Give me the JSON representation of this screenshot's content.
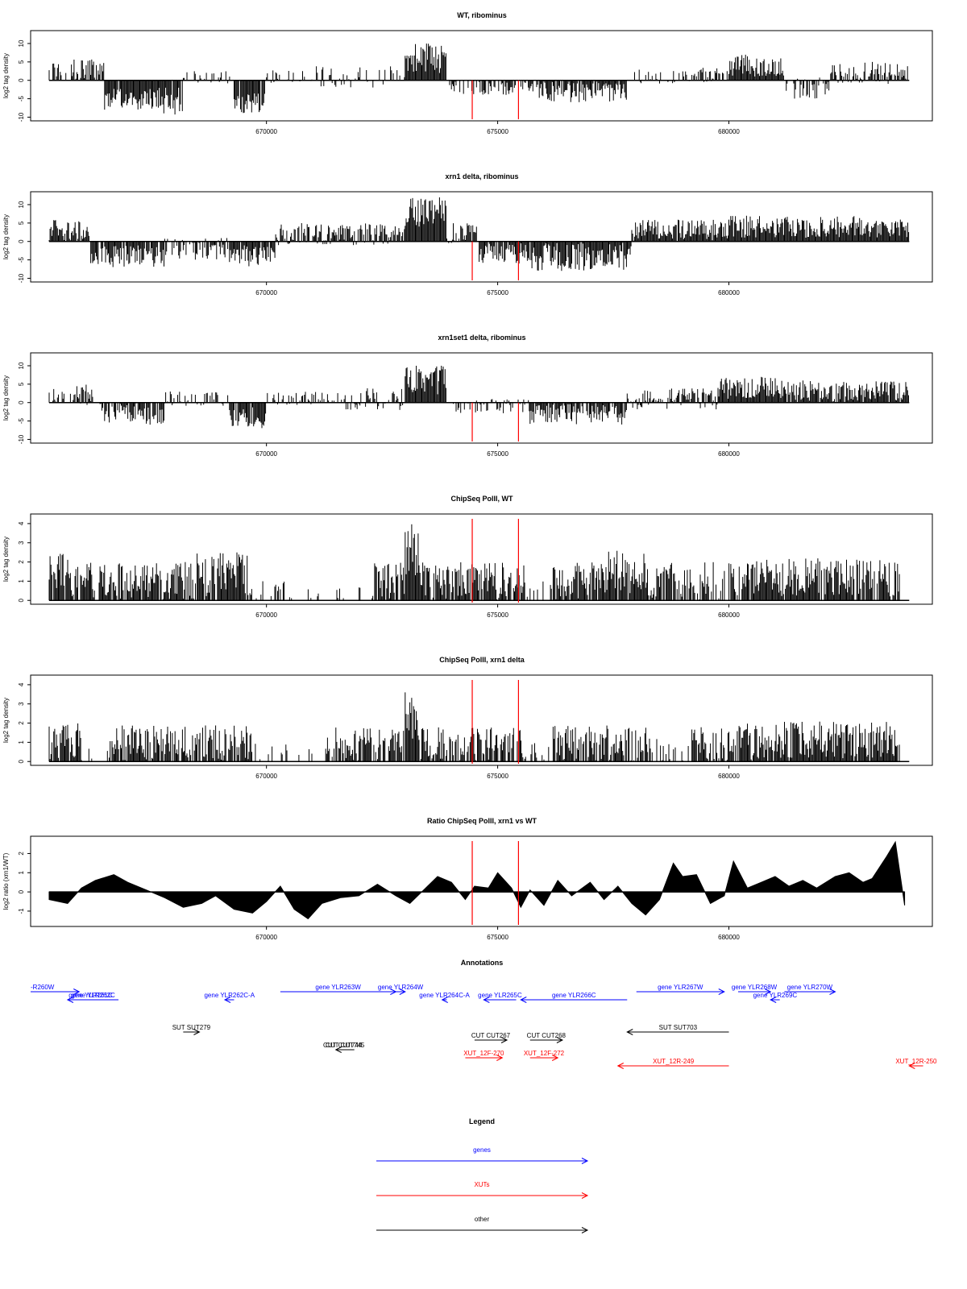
{
  "colors": {
    "signal": "#000000",
    "marker": "#ff0000",
    "gene": "#0000ff",
    "xut": "#ff0000",
    "other": "#000000",
    "frame": "#000000"
  },
  "chart_data": [
    {
      "type": "bar",
      "title": "WT, ribominus",
      "ylabel": "log2 tag density",
      "xlim": [
        664900,
        684400
      ],
      "ylim": [
        -11,
        13.5
      ],
      "yticks": [
        "10",
        "5",
        "0",
        "-5",
        "-10"
      ],
      "yticks_values": [
        10,
        5,
        0,
        -5,
        -10
      ],
      "xticks": [
        "670000",
        "675000",
        "680000"
      ],
      "xticks_values": [
        670000,
        675000,
        680000
      ],
      "markers_x": [
        674450,
        675450
      ],
      "series": [
        {
          "segments": [
            [
              665300,
              665800,
              3,
              2,
              0.4
            ],
            [
              665800,
              666500,
              3,
              3,
              0.9
            ],
            [
              666500,
              667700,
              -5,
              3,
              0.95
            ],
            [
              667700,
              668200,
              -6,
              4,
              0.9
            ],
            [
              668200,
              669300,
              1,
              2,
              0.5
            ],
            [
              669300,
              670000,
              -6,
              3,
              0.95
            ],
            [
              670000,
              671000,
              1,
              2,
              0.3
            ],
            [
              671000,
              673000,
              1,
              3,
              0.35
            ],
            [
              673000,
              673900,
              6,
              4,
              1.0
            ],
            [
              673900,
              674600,
              -2,
              2,
              0.4
            ],
            [
              674600,
              675900,
              -2,
              2,
              0.6
            ],
            [
              675900,
              677800,
              -3,
              3,
              0.95
            ],
            [
              677800,
              679200,
              1,
              2,
              0.3
            ],
            [
              679200,
              680000,
              1.5,
              2,
              0.7
            ],
            [
              680000,
              681200,
              4,
              3,
              1.0
            ],
            [
              681200,
              682200,
              -2,
              3,
              0.6
            ],
            [
              682200,
              683900,
              2,
              3,
              0.9
            ]
          ]
        }
      ]
    },
    {
      "type": "bar",
      "title": "xrn1 delta, ribominus",
      "ylabel": "log2 tag density",
      "xlim": [
        664900,
        684400
      ],
      "ylim": [
        -11,
        13.5
      ],
      "yticks": [
        "10",
        "5",
        "0",
        "-5",
        "-10"
      ],
      "yticks_values": [
        10,
        5,
        0,
        -5,
        -10
      ],
      "xticks": [
        "670000",
        "675000",
        "680000"
      ],
      "xticks_values": [
        670000,
        675000,
        680000
      ],
      "markers_x": [
        674450,
        675450
      ],
      "series": [
        {
          "segments": [
            [
              665300,
              666200,
              3,
              3,
              0.95
            ],
            [
              666200,
              667800,
              -4,
              3,
              0.95
            ],
            [
              667800,
              669200,
              -2,
              3,
              0.8
            ],
            [
              669200,
              670200,
              -4,
              3,
              0.95
            ],
            [
              670200,
              671300,
              2,
              3,
              0.8
            ],
            [
              671300,
              673000,
              2,
              3,
              0.8
            ],
            [
              673000,
              673900,
              8,
              4,
              1.0
            ],
            [
              673900,
              674600,
              2,
              3,
              0.9
            ],
            [
              674600,
              675700,
              -3,
              3,
              0.9
            ],
            [
              675700,
              677900,
              -4,
              4,
              1.0
            ],
            [
              677900,
              680000,
              3,
              3,
              1.0
            ],
            [
              680000,
              683900,
              4,
              3,
              1.0
            ]
          ]
        }
      ]
    },
    {
      "type": "bar",
      "title": "xrn1set1 delta, ribominus",
      "ylabel": "log2 tag density",
      "xlim": [
        664900,
        684400
      ],
      "ylim": [
        -11,
        13.5
      ],
      "yticks": [
        "10",
        "5",
        "0",
        "-5",
        "-10"
      ],
      "yticks_values": [
        10,
        5,
        0,
        -5,
        -10
      ],
      "xticks": [
        "670000",
        "675000",
        "680000"
      ],
      "xticks_values": [
        670000,
        675000,
        680000
      ],
      "markers_x": [
        674450,
        675450
      ],
      "series": [
        {
          "segments": [
            [
              665300,
              665800,
              2,
              2,
              0.7
            ],
            [
              665800,
              666400,
              2,
              3,
              0.8
            ],
            [
              666400,
              667800,
              -3,
              3,
              0.9
            ],
            [
              667800,
              669200,
              1,
              2,
              0.5
            ],
            [
              669200,
              670000,
              -4,
              3,
              0.9
            ],
            [
              670000,
              671300,
              1,
              2,
              0.6
            ],
            [
              671300,
              673000,
              1,
              3,
              0.6
            ],
            [
              673000,
              673900,
              6,
              4,
              1.0
            ],
            [
              673900,
              675700,
              -1,
              2,
              0.5
            ],
            [
              675700,
              677800,
              -3,
              3,
              0.95
            ],
            [
              677800,
              679800,
              1,
              3,
              0.9
            ],
            [
              679800,
              681200,
              4,
              3,
              1.0
            ],
            [
              681200,
              683900,
              3,
              3,
              1.0
            ]
          ]
        }
      ]
    },
    {
      "type": "bar",
      "title": "ChipSeq PolII, WT",
      "ylabel": "log2 tag density",
      "xlim": [
        664900,
        684400
      ],
      "ylim": [
        -0.2,
        4.5
      ],
      "yticks": [
        "4",
        "3",
        "2",
        "1",
        "0"
      ],
      "yticks_values": [
        4,
        3,
        2,
        1,
        0
      ],
      "xticks": [
        "670000",
        "675000",
        "680000"
      ],
      "xticks_values": [
        670000,
        675000,
        680000
      ],
      "markers_x": [
        674450,
        675450
      ],
      "series": [
        {
          "segments": [
            [
              665300,
              665800,
              1.5,
              1,
              0.9
            ],
            [
              665800,
              666400,
              1,
              1,
              0.6
            ],
            [
              666400,
              668500,
              1,
              1,
              0.9
            ],
            [
              668500,
              669700,
              1.3,
              1.2,
              0.95
            ],
            [
              669700,
              670500,
              0.6,
              0.5,
              0.25
            ],
            [
              670500,
              672300,
              0.3,
              0.4,
              0.1
            ],
            [
              672300,
              673000,
              1,
              1,
              0.9
            ],
            [
              673000,
              673300,
              2.5,
              1.5,
              1.0
            ],
            [
              673300,
              675600,
              1,
              1,
              0.9
            ],
            [
              675600,
              676200,
              0.6,
              0.6,
              0.3
            ],
            [
              676200,
              677400,
              1,
              1,
              0.9
            ],
            [
              677400,
              678200,
              1.4,
              1.2,
              0.95
            ],
            [
              678200,
              679100,
              1,
              1,
              0.8
            ],
            [
              679100,
              680300,
              1,
              1,
              0.6
            ],
            [
              680300,
              683700,
              1.2,
              1,
              0.95
            ]
          ]
        }
      ]
    },
    {
      "type": "bar",
      "title": "ChipSeq PolII, xrn1 delta",
      "ylabel": "log2 tag density",
      "xlim": [
        664900,
        684400
      ],
      "ylim": [
        -0.2,
        4.5
      ],
      "yticks": [
        "4",
        "3",
        "2",
        "1",
        "0"
      ],
      "yticks_values": [
        4,
        3,
        2,
        1,
        0
      ],
      "xticks": [
        "670000",
        "675000",
        "680000"
      ],
      "xticks_values": [
        670000,
        675000,
        680000
      ],
      "markers_x": [
        674450,
        675450
      ],
      "series": [
        {
          "segments": [
            [
              665300,
              666000,
              1,
              1,
              0.9
            ],
            [
              666000,
              666600,
              0.4,
              0.4,
              0.3
            ],
            [
              666600,
              668200,
              0.9,
              1,
              0.9
            ],
            [
              668200,
              669700,
              0.9,
              1,
              0.9
            ],
            [
              669700,
              670500,
              0.5,
              0.5,
              0.25
            ],
            [
              670500,
              671300,
              0.3,
              0.4,
              0.1
            ],
            [
              671300,
              673000,
              0.8,
              1,
              0.85
            ],
            [
              673000,
              673300,
              2.5,
              1.5,
              1.0
            ],
            [
              673300,
              675700,
              0.8,
              1,
              0.9
            ],
            [
              675700,
              676200,
              0.5,
              0.5,
              0.4
            ],
            [
              676200,
              678300,
              0.9,
              1,
              0.9
            ],
            [
              678300,
              679200,
              0.6,
              0.6,
              0.4
            ],
            [
              679200,
              680200,
              0.8,
              1,
              0.9
            ],
            [
              680200,
              683700,
              1.1,
              1,
              0.95
            ]
          ]
        }
      ]
    },
    {
      "type": "area",
      "title": "Ratio ChipSeq PolII, xrn1 vs WT",
      "ylabel": "log2 ratio (xrn1/WT)",
      "xlim": [
        664900,
        684400
      ],
      "ylim": [
        -1.8,
        2.9
      ],
      "yticks": [
        "2",
        "1",
        "0",
        "-1"
      ],
      "yticks_values": [
        2,
        1,
        0,
        -1
      ],
      "xticks": [
        "670000",
        "675000",
        "680000"
      ],
      "xticks_values": [
        670000,
        675000,
        680000
      ],
      "markers_x": [
        674450,
        675450
      ],
      "series": [
        {
          "x": [
            665300,
            665700,
            666000,
            666300,
            666700,
            667000,
            667400,
            667800,
            668200,
            668600,
            668900,
            669300,
            669700,
            670000,
            670300,
            670600,
            670900,
            671200,
            671600,
            672000,
            672400,
            672800,
            673100,
            673400,
            673700,
            674000,
            674300,
            674500,
            674800,
            675000,
            675300,
            675500,
            675700,
            676000,
            676300,
            676600,
            677000,
            677300,
            677600,
            677900,
            678200,
            678500,
            678800,
            679000,
            679300,
            679600,
            679900,
            680100,
            680400,
            680700,
            681000,
            681300,
            681600,
            681900,
            682300,
            682600,
            682900,
            683100,
            683400,
            683600,
            683800
          ],
          "y": [
            -0.4,
            -0.6,
            0.2,
            0.6,
            0.9,
            0.5,
            0.1,
            -0.3,
            -0.8,
            -0.6,
            -0.2,
            -0.9,
            -1.1,
            -0.5,
            0.3,
            -0.9,
            -1.4,
            -0.6,
            -0.3,
            -0.2,
            0.4,
            -0.2,
            -0.6,
            0.1,
            0.8,
            0.5,
            -0.4,
            0.3,
            0.2,
            1.0,
            0.2,
            -0.8,
            0.1,
            -0.7,
            0.6,
            -0.2,
            0.5,
            -0.4,
            0.3,
            -0.6,
            -1.2,
            -0.4,
            1.5,
            0.8,
            0.9,
            -0.6,
            -0.2,
            1.6,
            0.2,
            0.5,
            0.8,
            0.3,
            0.6,
            0.2,
            0.8,
            1.0,
            0.5,
            0.7,
            1.8,
            2.6,
            -0.7
          ]
        }
      ]
    }
  ],
  "annotations": {
    "title": "Annotations",
    "xlim": [
      664900,
      684400
    ],
    "items": [
      {
        "kind": "gene",
        "label": "-R260W",
        "x1": 664900,
        "x2": 665950,
        "row": 0
      },
      {
        "kind": "gene",
        "label": "gene YLR262C",
        "x1": 666800,
        "x2": 665700,
        "row": 1,
        "overlap": "gene YLR261C"
      },
      {
        "kind": "gene",
        "label": "gene YLR262C-A",
        "x1": 669300,
        "x2": 669100,
        "row": 1
      },
      {
        "kind": "gene",
        "label": "gene YLR263W",
        "x1": 670300,
        "x2": 672800,
        "row": 0
      },
      {
        "kind": "gene",
        "label": "gene YLR264W",
        "x1": 672800,
        "x2": 673000,
        "row": 0
      },
      {
        "kind": "gene",
        "label": "gene YLR264C-A",
        "x1": 673900,
        "x2": 673800,
        "row": 1
      },
      {
        "kind": "gene",
        "label": "gene YLR265C",
        "x1": 675400,
        "x2": 674700,
        "row": 1
      },
      {
        "kind": "gene",
        "label": "gene YLR266C",
        "x1": 677800,
        "x2": 675500,
        "row": 1
      },
      {
        "kind": "gene",
        "label": "gene YLR267W",
        "x1": 678000,
        "x2": 679900,
        "row": 0
      },
      {
        "kind": "gene",
        "label": "gene YLR268W",
        "x1": 680200,
        "x2": 680900,
        "row": 0
      },
      {
        "kind": "gene",
        "label": "gene YLR269C",
        "x1": 681100,
        "x2": 680900,
        "row": 1
      },
      {
        "kind": "gene",
        "label": "gene YLR270W",
        "x1": 681200,
        "x2": 682300,
        "row": 0
      },
      {
        "kind": "other",
        "label": "SUT SUT279",
        "x1": 668200,
        "x2": 668550,
        "row": 2
      },
      {
        "kind": "other",
        "label": "CUT CUT267",
        "x1": 674500,
        "x2": 675200,
        "row": 3
      },
      {
        "kind": "other",
        "label": "CUT CUT268",
        "x1": 675700,
        "x2": 676400,
        "row": 3
      },
      {
        "kind": "other",
        "label": "SUT SUT703",
        "x1": 680000,
        "x2": 677800,
        "row": 2
      },
      {
        "kind": "other",
        "label": "CUT CUT745",
        "x1": 671900,
        "x2": 671500,
        "row": 4,
        "overlap": "CUT CUT744"
      },
      {
        "kind": "xut",
        "label": "XUT_12F-270",
        "x1": 674300,
        "x2": 675100,
        "row": 5
      },
      {
        "kind": "xut",
        "label": "XUT_12F-272",
        "x1": 675700,
        "x2": 676300,
        "row": 5
      },
      {
        "kind": "xut",
        "label": "XUT_12R-249",
        "x1": 680000,
        "x2": 677600,
        "row": 6
      },
      {
        "kind": "xut",
        "label": "XUT_12R-250",
        "x1": 684200,
        "x2": 683900,
        "row": 6
      }
    ]
  },
  "legend": {
    "title": "Legend",
    "items": [
      {
        "kind": "gene",
        "label": "genes"
      },
      {
        "kind": "xut",
        "label": "XUTs"
      },
      {
        "kind": "other",
        "label": "other"
      }
    ]
  }
}
